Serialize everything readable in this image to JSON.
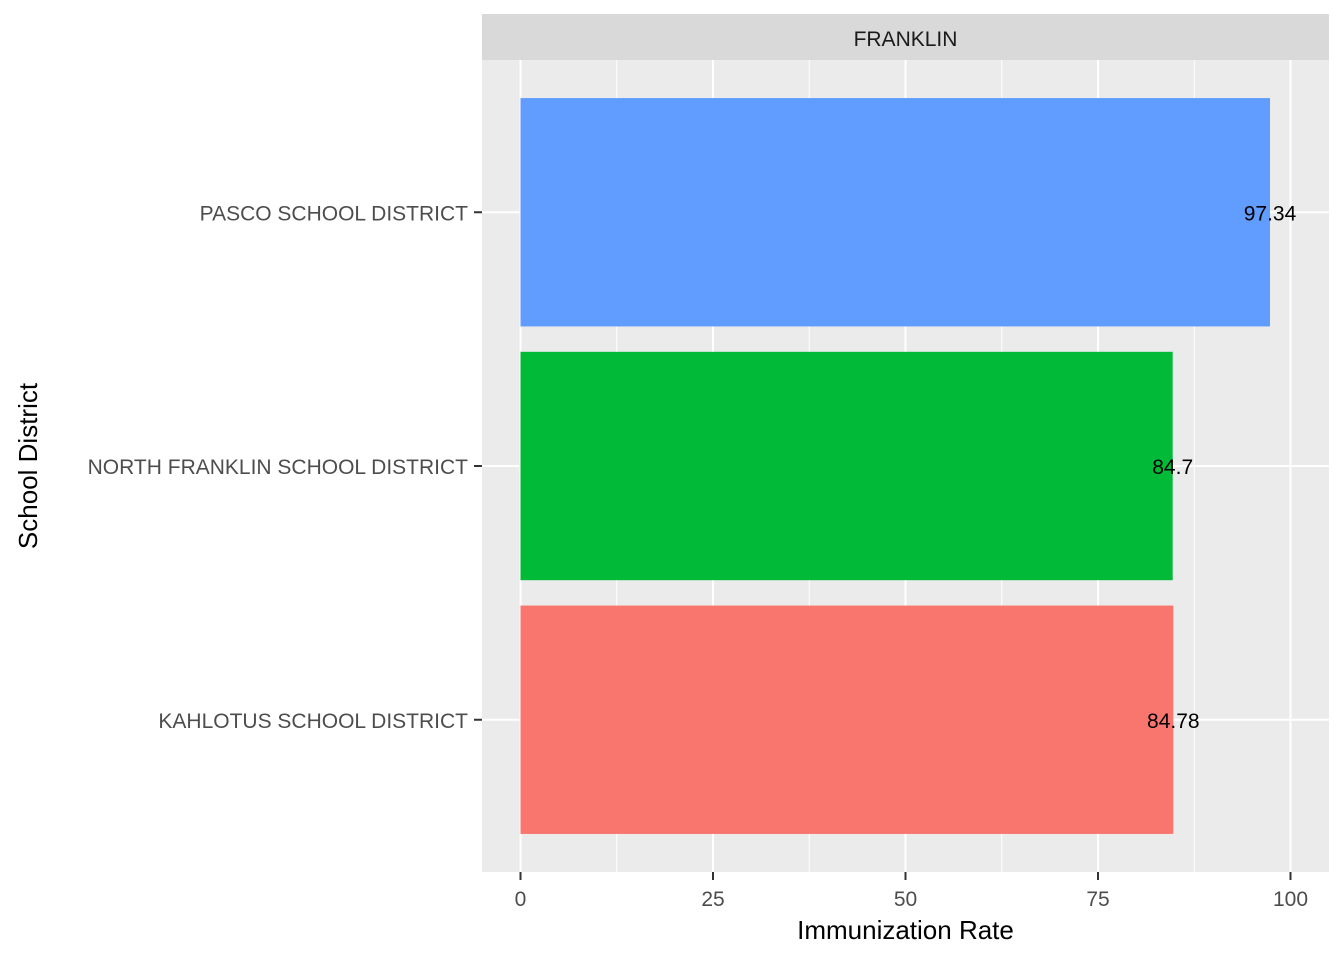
{
  "chart_data": {
    "type": "bar",
    "orientation": "horizontal",
    "facet_label": "FRANKLIN",
    "categories": [
      "KAHLOTUS SCHOOL DISTRICT",
      "NORTH FRANKLIN SCHOOL DISTRICT",
      "PASCO SCHOOL DISTRICT"
    ],
    "values": [
      84.78,
      84.7,
      97.34
    ],
    "value_labels": [
      "84.78",
      "84.7",
      "97.34"
    ],
    "colors": [
      "#F8766D",
      "#00BA38",
      "#619CFF"
    ],
    "xlabel": "Immunization Rate",
    "ylabel": "School District",
    "xlim": [
      0,
      100
    ],
    "xticks": [
      0,
      25,
      50,
      75,
      100
    ],
    "grid": true,
    "legend": "none"
  }
}
